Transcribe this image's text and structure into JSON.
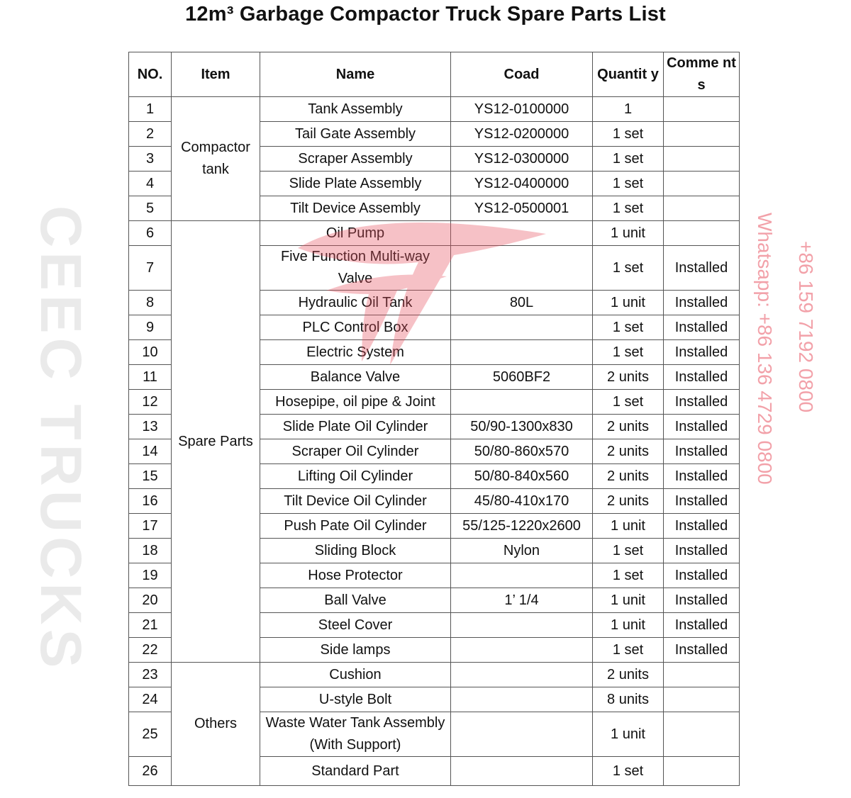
{
  "title": "12m³ Garbage Compactor Truck Spare Parts List",
  "headers": {
    "no": "NO.",
    "item": "Item",
    "name": "Name",
    "coad": "Coad",
    "quantity": "Quantit y",
    "comments": "Comme nts"
  },
  "groups": {
    "compactor": "Compactor tank",
    "spare": "Spare Parts",
    "others": "Others"
  },
  "rows": [
    {
      "no": "1",
      "name": "Tank Assembly",
      "coad": "YS12-0100000",
      "qty": "1",
      "comment": ""
    },
    {
      "no": "2",
      "name": "Tail Gate Assembly",
      "coad": "YS12-0200000",
      "qty": "1 set",
      "comment": ""
    },
    {
      "no": "3",
      "name": "Scraper Assembly",
      "coad": "YS12-0300000",
      "qty": "1 set",
      "comment": ""
    },
    {
      "no": "4",
      "name": "Slide Plate Assembly",
      "coad": "YS12-0400000",
      "qty": "1 set",
      "comment": ""
    },
    {
      "no": "5",
      "name": "Tilt Device Assembly",
      "coad": "YS12-0500001",
      "qty": "1 set",
      "comment": ""
    },
    {
      "no": "6",
      "name": "Oil Pump",
      "coad": "",
      "qty": "1 unit",
      "comment": ""
    },
    {
      "no": "7",
      "name": "Five Function Multi-way Valve",
      "coad": "",
      "qty": "1 set",
      "comment": "Installed"
    },
    {
      "no": "8",
      "name": "Hydraulic Oil Tank",
      "coad": "80L",
      "qty": "1 unit",
      "comment": "Installed"
    },
    {
      "no": "9",
      "name": "PLC Control Box",
      "coad": "",
      "qty": "1 set",
      "comment": "Installed"
    },
    {
      "no": "10",
      "name": "Electric System",
      "coad": "",
      "qty": "1 set",
      "comment": "Installed"
    },
    {
      "no": "11",
      "name": "Balance Valve",
      "coad": "5060BF2",
      "qty": "2 units",
      "comment": "Installed"
    },
    {
      "no": "12",
      "name": "Hosepipe, oil pipe & Joint",
      "coad": "",
      "qty": "1 set",
      "comment": "Installed"
    },
    {
      "no": "13",
      "name": "Slide Plate Oil Cylinder",
      "coad": "50/90-1300x830",
      "qty": "2 units",
      "comment": "Installed"
    },
    {
      "no": "14",
      "name": "Scraper Oil Cylinder",
      "coad": "50/80-860x570",
      "qty": "2 units",
      "comment": "Installed"
    },
    {
      "no": "15",
      "name": "Lifting Oil Cylinder",
      "coad": "50/80-840x560",
      "qty": "2 units",
      "comment": "Installed"
    },
    {
      "no": "16",
      "name": "Tilt Device Oil Cylinder",
      "coad": "45/80-410x170",
      "qty": "2 units",
      "comment": "Installed"
    },
    {
      "no": "17",
      "name": "Push Pate Oil Cylinder",
      "coad": "55/125-1220x2600",
      "qty": "1 unit",
      "comment": "Installed"
    },
    {
      "no": "18",
      "name": "Sliding Block",
      "coad": "Nylon",
      "qty": "1 set",
      "comment": "Installed"
    },
    {
      "no": "19",
      "name": "Hose Protector",
      "coad": "",
      "qty": "1 set",
      "comment": "Installed"
    },
    {
      "no": "20",
      "name": "Ball Valve",
      "coad": "1’ 1/4",
      "qty": "1 unit",
      "comment": "Installed"
    },
    {
      "no": "21",
      "name": "Steel Cover",
      "coad": "",
      "qty": "1 unit",
      "comment": "Installed"
    },
    {
      "no": "22",
      "name": "Side lamps",
      "coad": "",
      "qty": "1 set",
      "comment": "Installed"
    },
    {
      "no": "23",
      "name": "Cushion",
      "coad": "",
      "qty": "2 units",
      "comment": ""
    },
    {
      "no": "24",
      "name": "U-style Bolt",
      "coad": "",
      "qty": "8 units",
      "comment": ""
    },
    {
      "no": "25",
      "name": "Waste Water Tank Assembly (With Support)",
      "coad": "",
      "qty": "1 unit",
      "comment": ""
    },
    {
      "no": "26",
      "name": "Standard Part",
      "coad": "",
      "qty": "1 set",
      "comment": ""
    }
  ],
  "watermark": {
    "brand": "CEEC TRUCKS",
    "phone1": "Whatsapp: +86 136 4729 0800",
    "phone2": "+86 159 7192 0800",
    "color": "#e8505e"
  }
}
